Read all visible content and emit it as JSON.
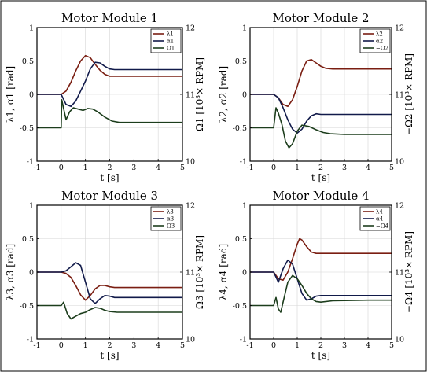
{
  "chart_data": [
    {
      "type": "line",
      "title": "Motor Module 1",
      "xlabel": "t [s]",
      "ylabel_left": "λ1, α1 [rad]",
      "ylabel_right": "Ω1 [10³× RPM]",
      "xlim": [
        -1,
        5
      ],
      "ylim_left": [
        -1,
        1
      ],
      "ylim_right": [
        10,
        12
      ],
      "xticks": [
        "-1",
        "0",
        "1",
        "2",
        "3",
        "4",
        "5"
      ],
      "yticks_left": [
        "-1",
        "-0.5",
        "0",
        "0.5",
        "1"
      ],
      "yticks_right": [
        "10",
        "11",
        "12"
      ],
      "grid": true,
      "legend_position": "top-right",
      "series": [
        {
          "name": "λ1",
          "axis": "left",
          "color": "#7a1e12",
          "x": [
            -1,
            0,
            0.2,
            0.4,
            0.6,
            0.8,
            1.0,
            1.2,
            1.4,
            1.6,
            1.8,
            2.0,
            2.2,
            2.5,
            3,
            4,
            5
          ],
          "y": [
            0,
            0,
            0.05,
            0.18,
            0.35,
            0.5,
            0.58,
            0.55,
            0.45,
            0.36,
            0.3,
            0.27,
            0.27,
            0.27,
            0.27,
            0.27,
            0.27
          ]
        },
        {
          "name": "α1",
          "axis": "left",
          "color": "#111a4a",
          "x": [
            -1,
            0,
            0.2,
            0.4,
            0.6,
            0.8,
            1.0,
            1.2,
            1.4,
            1.6,
            1.8,
            2.0,
            2.2,
            2.5,
            3,
            4,
            5
          ],
          "y": [
            0,
            0,
            -0.15,
            -0.18,
            -0.1,
            0.05,
            0.2,
            0.38,
            0.48,
            0.47,
            0.42,
            0.38,
            0.37,
            0.37,
            0.37,
            0.37,
            0.37
          ]
        },
        {
          "name": "Ω1",
          "axis": "right",
          "color": "#1c3d1c",
          "x": [
            -1,
            0,
            0.02,
            0.2,
            0.35,
            0.5,
            0.7,
            0.9,
            1.1,
            1.3,
            1.5,
            1.8,
            2.1,
            2.4,
            3,
            4,
            5
          ],
          "y": [
            10.5,
            10.5,
            10.92,
            10.62,
            10.74,
            10.8,
            10.78,
            10.76,
            10.79,
            10.78,
            10.74,
            10.66,
            10.6,
            10.58,
            10.58,
            10.58,
            10.58
          ]
        }
      ]
    },
    {
      "type": "line",
      "title": "Motor Module 2",
      "xlabel": "t [s]",
      "ylabel_left": "λ2, α2 [rad]",
      "ylabel_right": "−Ω2 [10³× RPM]",
      "xlim": [
        -1,
        5
      ],
      "ylim_left": [
        -1,
        1
      ],
      "ylim_right": [
        10,
        12
      ],
      "xticks": [
        "-1",
        "0",
        "1",
        "2",
        "3",
        "4",
        "5"
      ],
      "yticks_left": [
        "-1",
        "-0.5",
        "0",
        "0.5",
        "1"
      ],
      "yticks_right": [
        "10",
        "11",
        "12"
      ],
      "grid": true,
      "legend_position": "top-right",
      "series": [
        {
          "name": "λ2",
          "axis": "left",
          "color": "#7a1e12",
          "x": [
            -1,
            0,
            0.2,
            0.4,
            0.6,
            0.8,
            1.0,
            1.2,
            1.4,
            1.6,
            1.8,
            2.0,
            2.2,
            2.5,
            3,
            4,
            5
          ],
          "y": [
            0,
            0,
            -0.05,
            -0.15,
            -0.18,
            -0.08,
            0.12,
            0.35,
            0.5,
            0.52,
            0.47,
            0.42,
            0.39,
            0.38,
            0.38,
            0.38,
            0.38
          ]
        },
        {
          "name": "α2",
          "axis": "left",
          "color": "#111a4a",
          "x": [
            -1,
            0,
            0.2,
            0.4,
            0.6,
            0.8,
            1.0,
            1.2,
            1.4,
            1.6,
            1.8,
            2.0,
            2.2,
            2.5,
            3,
            4,
            5
          ],
          "y": [
            0,
            0,
            -0.05,
            -0.2,
            -0.38,
            -0.52,
            -0.58,
            -0.52,
            -0.4,
            -0.32,
            -0.29,
            -0.3,
            -0.3,
            -0.3,
            -0.3,
            -0.3,
            -0.3
          ]
        },
        {
          "name": "−Ω2",
          "axis": "right",
          "color": "#1c3d1c",
          "x": [
            -1,
            0,
            0.1,
            0.2,
            0.35,
            0.5,
            0.65,
            0.8,
            1.0,
            1.2,
            1.5,
            1.8,
            2.1,
            2.4,
            3,
            4,
            5
          ],
          "y": [
            10.5,
            10.5,
            10.8,
            10.72,
            10.55,
            10.3,
            10.2,
            10.26,
            10.45,
            10.54,
            10.52,
            10.47,
            10.43,
            10.41,
            10.4,
            10.4,
            10.4
          ]
        }
      ]
    },
    {
      "type": "line",
      "title": "Motor Module 3",
      "xlabel": "t [s]",
      "ylabel_left": "λ3, α3 [rad]",
      "ylabel_right": "Ω3 [10³× RPM]",
      "xlim": [
        -1,
        5
      ],
      "ylim_left": [
        -1,
        1
      ],
      "ylim_right": [
        10,
        12
      ],
      "xticks": [
        "-1",
        "0",
        "1",
        "2",
        "3",
        "4",
        "5"
      ],
      "yticks_left": [
        "-1",
        "-0.5",
        "0",
        "0.5",
        "1"
      ],
      "yticks_right": [
        "10",
        "11",
        "12"
      ],
      "grid": true,
      "legend_position": "top-right",
      "series": [
        {
          "name": "λ3",
          "axis": "left",
          "color": "#7a1e12",
          "x": [
            -1,
            0,
            0.2,
            0.4,
            0.6,
            0.8,
            1.0,
            1.2,
            1.4,
            1.6,
            1.8,
            2.0,
            2.2,
            2.5,
            3,
            4,
            5
          ],
          "y": [
            0,
            0,
            -0.02,
            -0.08,
            -0.2,
            -0.34,
            -0.42,
            -0.35,
            -0.25,
            -0.2,
            -0.2,
            -0.22,
            -0.23,
            -0.23,
            -0.23,
            -0.23,
            -0.23
          ]
        },
        {
          "name": "α3",
          "axis": "left",
          "color": "#111a4a",
          "x": [
            -1,
            0,
            0.2,
            0.4,
            0.6,
            0.8,
            1.0,
            1.2,
            1.4,
            1.6,
            1.8,
            2.0,
            2.2,
            2.5,
            3,
            4,
            5
          ],
          "y": [
            0,
            0,
            0.02,
            0.08,
            0.14,
            0.1,
            -0.15,
            -0.4,
            -0.47,
            -0.4,
            -0.35,
            -0.36,
            -0.38,
            -0.38,
            -0.38,
            -0.38,
            -0.38
          ]
        },
        {
          "name": "Ω3",
          "axis": "right",
          "color": "#1c3d1c",
          "x": [
            -1,
            0,
            0.1,
            0.25,
            0.4,
            0.6,
            0.8,
            1.0,
            1.2,
            1.4,
            1.6,
            1.8,
            2.0,
            2.3,
            3,
            4,
            5
          ],
          "y": [
            10.5,
            10.5,
            10.55,
            10.38,
            10.3,
            10.34,
            10.38,
            10.4,
            10.44,
            10.47,
            10.46,
            10.43,
            10.41,
            10.4,
            10.4,
            10.4,
            10.4
          ]
        }
      ]
    },
    {
      "type": "line",
      "title": "Motor Module 4",
      "xlabel": "t [s]",
      "ylabel_left": "λ4, α4 [rad]",
      "ylabel_right": "−Ω4 [10³× RPM]",
      "xlim": [
        -1,
        5
      ],
      "ylim_left": [
        -1,
        1
      ],
      "ylim_right": [
        10,
        12
      ],
      "xticks": [
        "-1",
        "0",
        "1",
        "2",
        "3",
        "4",
        "5"
      ],
      "yticks_left": [
        "-1",
        "-0.5",
        "0",
        "0.5",
        "1"
      ],
      "yticks_right": [
        "10",
        "11",
        "12"
      ],
      "grid": true,
      "legend_position": "top-right",
      "series": [
        {
          "name": "λ4",
          "axis": "left",
          "color": "#7a1e12",
          "x": [
            -1,
            0,
            0.2,
            0.4,
            0.6,
            0.8,
            1.0,
            1.1,
            1.2,
            1.4,
            1.6,
            1.8,
            2.0,
            2.3,
            3,
            4,
            5
          ],
          "y": [
            0,
            0,
            -0.1,
            -0.12,
            0.0,
            0.2,
            0.42,
            0.5,
            0.48,
            0.38,
            0.3,
            0.28,
            0.28,
            0.28,
            0.28,
            0.28,
            0.28
          ]
        },
        {
          "name": "α4",
          "axis": "left",
          "color": "#111a4a",
          "x": [
            -1,
            0,
            0.2,
            0.4,
            0.6,
            0.8,
            1.0,
            1.2,
            1.4,
            1.6,
            1.8,
            2.0,
            2.2,
            2.5,
            3,
            4,
            5
          ],
          "y": [
            0,
            0,
            -0.15,
            0.05,
            0.18,
            0.12,
            -0.1,
            -0.32,
            -0.42,
            -0.4,
            -0.36,
            -0.35,
            -0.35,
            -0.35,
            -0.35,
            -0.35,
            -0.35
          ]
        },
        {
          "name": "−Ω4",
          "axis": "right",
          "color": "#1c3d1c",
          "x": [
            -1,
            0,
            0.1,
            0.2,
            0.3,
            0.4,
            0.6,
            0.8,
            1.0,
            1.2,
            1.4,
            1.6,
            1.8,
            2.0,
            2.5,
            4,
            5
          ],
          "y": [
            10.5,
            10.5,
            10.62,
            10.45,
            10.4,
            10.55,
            10.85,
            10.95,
            10.9,
            10.8,
            10.68,
            10.6,
            10.56,
            10.55,
            10.57,
            10.58,
            10.58
          ]
        }
      ]
    }
  ]
}
